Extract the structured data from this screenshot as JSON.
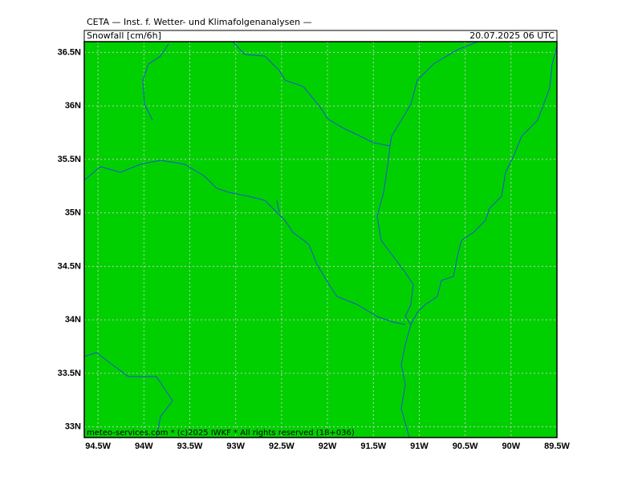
{
  "header": {
    "title": "CETA — Inst. f. Wetter- und Klimafolgenanalysen —",
    "field": "Snowfall [cm/6h]",
    "valid_time": "20.07.2025 06 UTC"
  },
  "footer": "meteo-services.com * (c)2025 IWKF * All rights reserved (18+036)",
  "map": {
    "xlim": [
      -94.65,
      -89.5
    ],
    "ylim": [
      32.9,
      36.6
    ],
    "fill": "#00d000",
    "grid": true,
    "xticks": [
      {
        "value": -94.5,
        "label": "94.5W"
      },
      {
        "value": -94,
        "label": "94W"
      },
      {
        "value": -93.5,
        "label": "93.5W"
      },
      {
        "value": -93,
        "label": "93W"
      },
      {
        "value": -92.5,
        "label": "92.5W"
      },
      {
        "value": -92,
        "label": "92W"
      },
      {
        "value": -91.5,
        "label": "91.5W"
      },
      {
        "value": -91,
        "label": "91W"
      },
      {
        "value": -90.5,
        "label": "90.5W"
      },
      {
        "value": -90,
        "label": "90W"
      },
      {
        "value": -89.5,
        "label": "89.5W"
      }
    ],
    "yticks": [
      {
        "value": 33,
        "label": "33N"
      },
      {
        "value": 33.5,
        "label": "33.5N"
      },
      {
        "value": 34,
        "label": "34N"
      },
      {
        "value": 34.5,
        "label": "34.5N"
      },
      {
        "value": 35,
        "label": "35N"
      },
      {
        "value": 35.5,
        "label": "35.5N"
      },
      {
        "value": 36,
        "label": "36N"
      },
      {
        "value": 36.5,
        "label": "36.5N"
      }
    ]
  }
}
